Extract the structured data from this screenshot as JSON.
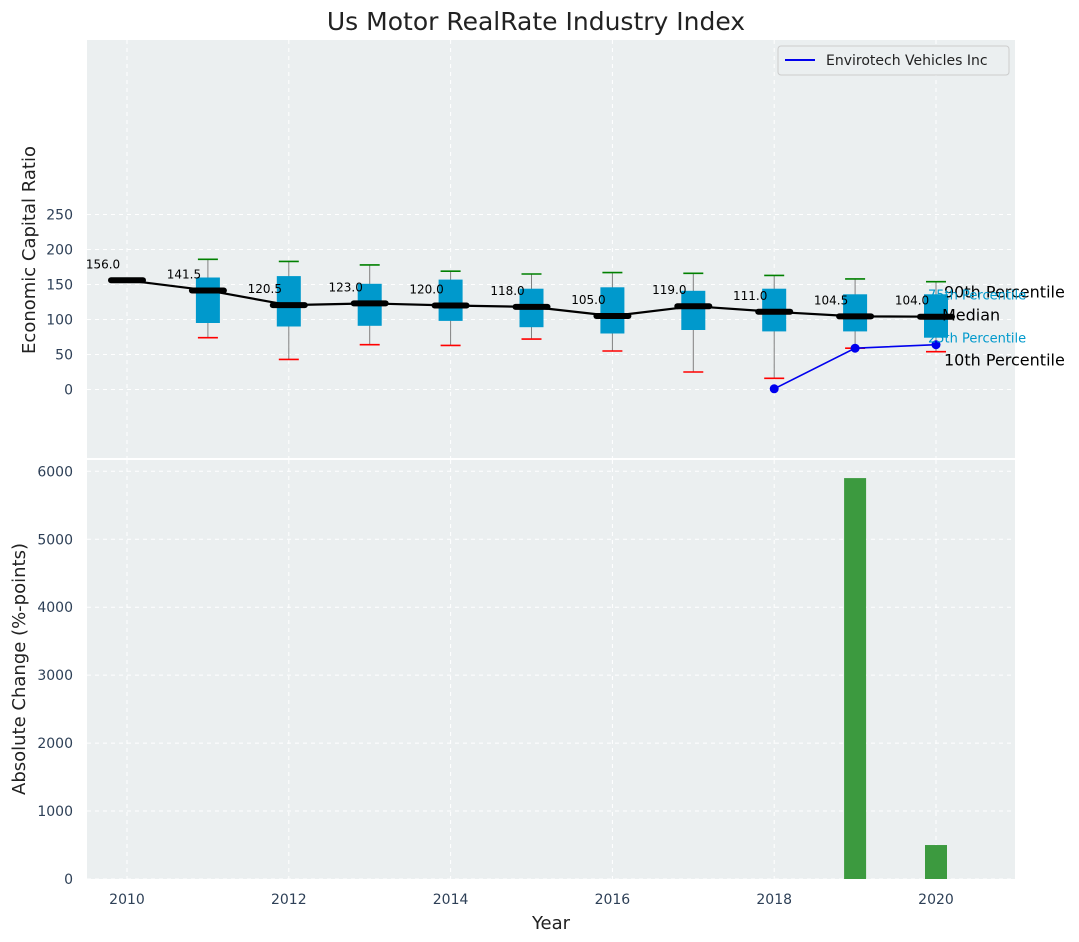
{
  "chart_data": {
    "title": "Us Motor RealRate Industry Index",
    "top": {
      "type": "box",
      "ylabel": "Economic Capital Ratio",
      "ylim": [
        -50,
        250
      ],
      "yticks": [
        0,
        50,
        100,
        150,
        200,
        250
      ],
      "years": [
        2010,
        2011,
        2012,
        2013,
        2014,
        2015,
        2016,
        2017,
        2018,
        2019,
        2020
      ],
      "median": [
        156.0,
        141.5,
        120.5,
        123.0,
        120.0,
        118.0,
        105.0,
        119.0,
        111.0,
        104.5,
        104.0
      ],
      "median_labels": [
        "156.0",
        "141.5",
        "120.5",
        "123.0",
        "120.0",
        "118.0",
        "105.0",
        "119.0",
        "111.0",
        "104.5",
        "104.0"
      ],
      "p25": [
        null,
        95,
        90,
        91,
        98,
        89,
        80,
        85,
        83,
        83,
        74
      ],
      "p75": [
        null,
        160,
        162,
        151,
        157,
        144,
        146,
        141,
        144,
        136,
        136
      ],
      "p10": [
        null,
        74,
        43,
        64,
        63,
        72,
        55,
        25,
        16,
        59,
        54
      ],
      "p90": [
        null,
        186,
        183,
        178,
        169,
        165,
        167,
        166,
        163,
        158,
        154
      ],
      "company": {
        "name": "Envirotech Vehicles Inc",
        "years": [
          2018,
          2019,
          2020
        ],
        "values": [
          1,
          59,
          64
        ]
      },
      "percentile_labels": {
        "p90": "90th Percentile",
        "p75": "75th Percentile",
        "median": "Median",
        "p25": "25th Percentile",
        "p10": "10th Percentile"
      },
      "legend_position": "top-right",
      "grid": true
    },
    "bottom": {
      "type": "bar",
      "ylabel": "Absolute Change (%-points)",
      "xlabel": "Year",
      "ylim": [
        0,
        6200
      ],
      "yticks": [
        0,
        1000,
        2000,
        3000,
        4000,
        5000,
        6000
      ],
      "xticks": [
        2010,
        2012,
        2014,
        2016,
        2018,
        2020
      ],
      "years": [
        2019,
        2020
      ],
      "values": [
        5900,
        500
      ],
      "grid": true
    },
    "xlim": [
      2009.5,
      2021
    ]
  },
  "colors": {
    "panel_bg": "#ebeff0",
    "box": "#0099cc",
    "median": "#000000",
    "whisker": "#808080",
    "cap_top": "#008000",
    "cap_bottom": "#ff0000",
    "company": "#0000ee",
    "bar": "#3c9a3f",
    "grid": "#ffffff"
  }
}
